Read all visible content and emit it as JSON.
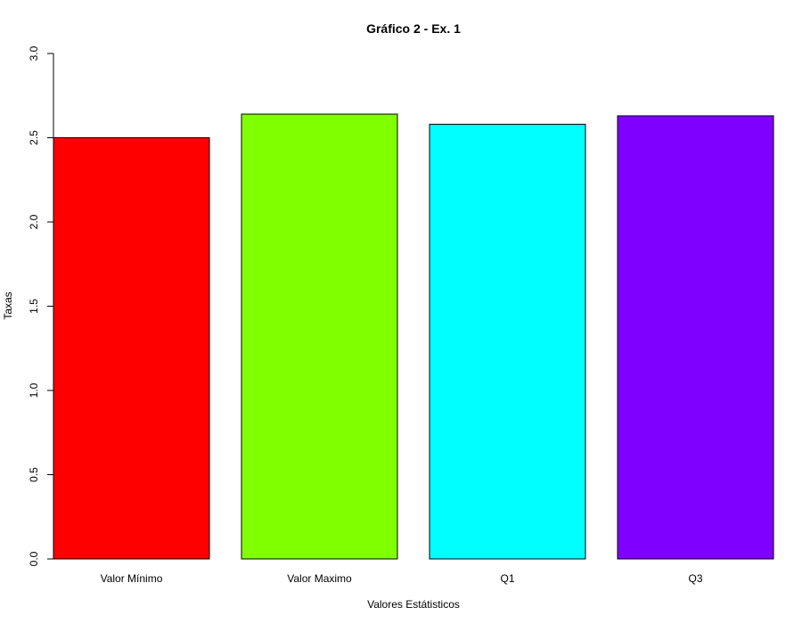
{
  "chart_data": {
    "type": "bar",
    "title": "Gráfico 2 - Ex. 1",
    "xlabel": "Valores Estátisticos",
    "ylabel": "Taxas",
    "categories": [
      "Valor Mínimo",
      "Valor Maximo",
      "Q1",
      "Q3"
    ],
    "values": [
      2.5,
      2.64,
      2.58,
      2.63
    ],
    "colors": [
      "#ff0000",
      "#80ff00",
      "#00ffff",
      "#8000ff"
    ],
    "ylim": [
      0,
      3
    ],
    "yticks": [
      0.0,
      0.5,
      1.0,
      1.5,
      2.0,
      2.5,
      3.0
    ],
    "ytick_labels": [
      "0.0",
      "0.5",
      "1.0",
      "1.5",
      "2.0",
      "2.5",
      "3.0"
    ],
    "grid": false,
    "legend": false
  }
}
